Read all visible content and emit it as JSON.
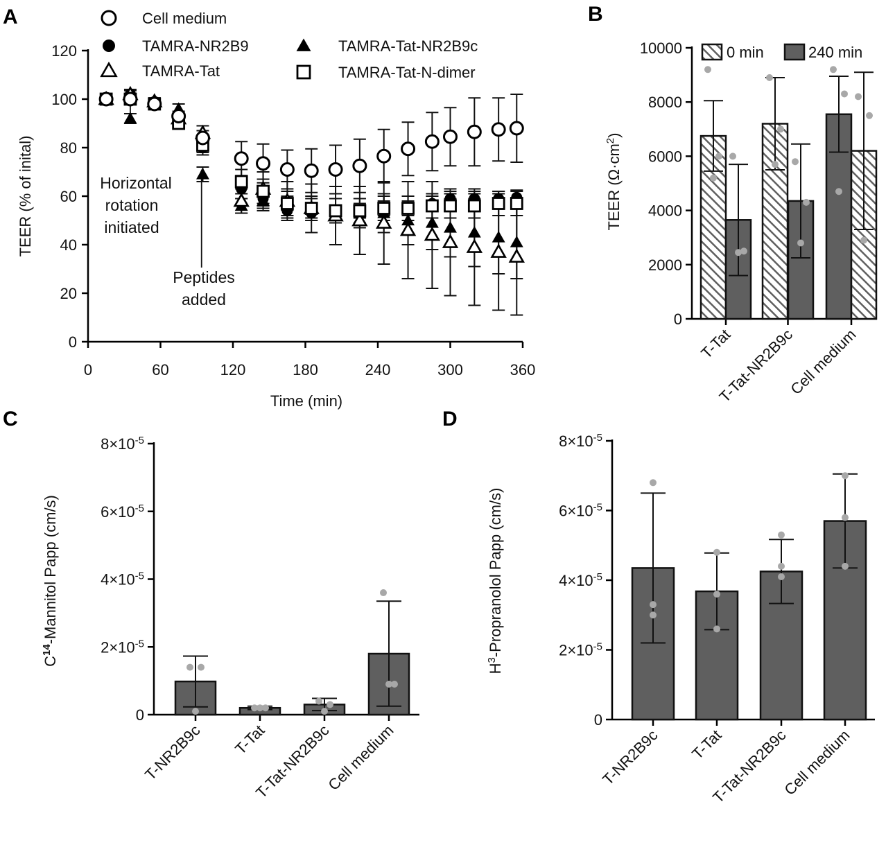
{
  "chart_data": [
    {
      "panel": "A",
      "type": "scatter",
      "xlabel": "Time (min)",
      "ylabel": "TEER (% of inital)",
      "xlim": [
        0,
        360
      ],
      "ylim": [
        0,
        120
      ],
      "xticks": [
        "0",
        "60",
        "120",
        "180",
        "240",
        "300",
        "360"
      ],
      "yticks": [
        "0",
        "20",
        "40",
        "60",
        "80",
        "100",
        "120"
      ],
      "annotations": [
        {
          "text": "Horizontal",
          "x": 35
        },
        {
          "text": "rotation",
          "x": 35
        },
        {
          "text": "initiated",
          "x": 35
        },
        {
          "text": "Peptides",
          "x": 94
        },
        {
          "text": "added",
          "x": 94
        }
      ],
      "x": [
        15,
        35,
        55,
        75,
        95,
        127,
        145,
        165,
        185,
        205,
        225,
        245,
        265,
        285,
        300,
        320,
        340,
        355
      ],
      "series": [
        {
          "name": "Cell medium",
          "marker": "circle-open",
          "values": [
            100,
            100,
            98,
            93,
            84,
            75.5,
            73.5,
            71,
            70.5,
            71,
            72.5,
            76.5,
            79.5,
            82.5,
            84.5,
            86.5,
            87.5,
            88
          ],
          "error": [
            0,
            2,
            1.5,
            2,
            3,
            7,
            8,
            8,
            9,
            10,
            11,
            11,
            11,
            12,
            12,
            14,
            13,
            14
          ]
        },
        {
          "name": "TAMRA-NR2B9",
          "marker": "circle-filled",
          "values": [
            100,
            102,
            99,
            92,
            80,
            63,
            59,
            54,
            53,
            53,
            54,
            55,
            55,
            57,
            59,
            59,
            59,
            59.5
          ],
          "error": [
            0,
            1.5,
            1.5,
            2,
            3,
            4,
            4,
            3,
            3,
            3,
            3,
            3,
            3,
            3,
            3,
            3,
            3,
            3
          ]
        },
        {
          "name": "TAMRA-Tat",
          "marker": "triangle-open",
          "values": [
            100,
            102,
            99,
            92,
            86,
            58,
            63,
            58,
            55,
            52,
            50,
            49,
            46,
            44,
            41,
            39,
            37,
            35
          ],
          "error": [
            0,
            2,
            1.5,
            2,
            3,
            5,
            7,
            8,
            10,
            12,
            14,
            17,
            20,
            22,
            22,
            24,
            24,
            24
          ]
        },
        {
          "name": "TAMRA-Tat-NR2B9c",
          "marker": "triangle-filled",
          "values": [
            100,
            92,
            99,
            96,
            69,
            56,
            58,
            56,
            55,
            54,
            53,
            53,
            50,
            49,
            47,
            45,
            43,
            41
          ],
          "error": [
            0,
            2,
            1.5,
            2,
            3,
            3,
            4,
            4,
            4,
            5,
            6,
            8,
            10,
            11,
            12,
            14,
            15,
            15
          ]
        },
        {
          "name": "TAMRA-Tat-N-dimer",
          "marker": "square-open",
          "values": [
            100,
            100,
            98,
            90,
            81,
            66,
            62,
            57,
            55,
            54,
            54,
            55,
            55,
            56,
            56,
            56,
            57,
            57
          ],
          "error": [
            0,
            2,
            1.5,
            2,
            3,
            5,
            5,
            5,
            5,
            5,
            5,
            5,
            5,
            5,
            5,
            5,
            5,
            5
          ]
        }
      ]
    },
    {
      "panel": "B",
      "type": "bar",
      "ylabel": "TEER (Ω·cm²)",
      "ylim": [
        0,
        10000
      ],
      "yticks": [
        "0",
        "2000",
        "4000",
        "6000",
        "8000",
        "10000"
      ],
      "categories": [
        "T-Tat",
        "T-Tat-NR2B9c",
        "Cell medium"
      ],
      "legend": [
        {
          "label": "0 min",
          "fill": "hatch"
        },
        {
          "label": "240 min",
          "fill": "solid"
        }
      ],
      "groups": [
        {
          "category": "T-Tat",
          "bars": [
            {
              "series": "0 min",
              "fill": "hatch",
              "value": 6750,
              "sd": 1300,
              "points": [
                9200,
                6000,
                5200
              ]
            },
            {
              "series": "240 min",
              "fill": "solid",
              "value": 3650,
              "sd": 2050,
              "points": [
                6000,
                2500,
                2450
              ]
            }
          ]
        },
        {
          "category": "T-Tat-NR2B9c",
          "bars": [
            {
              "series": "0 min",
              "fill": "hatch",
              "value": 7200,
              "sd": 1700,
              "points": [
                8900,
                7000,
                5700
              ]
            },
            {
              "series": "240 min",
              "fill": "solid",
              "value": 4350,
              "sd": 2100,
              "points": [
                5800,
                4300,
                2800
              ]
            }
          ]
        },
        {
          "category": "Cell medium",
          "bars": [
            {
              "series": "240 min",
              "fill": "solid",
              "value": 7550,
              "sd": 1400,
              "points": [
                9200,
                8300,
                4700
              ]
            },
            {
              "series": "0 min",
              "fill": "hatch",
              "value": 6200,
              "sd": 2900,
              "points": [
                8200,
                7500,
                2900
              ]
            }
          ]
        }
      ]
    },
    {
      "panel": "C",
      "type": "bar",
      "ylabel_prefix": "C",
      "ylabel_sup": "14",
      "ylabel_rest": "-Mannitol Papp (cm/s)",
      "ylim": [
        0,
        8e-05
      ],
      "yticks": [
        {
          "base": "0",
          "exp": ""
        },
        {
          "base": "2×10",
          "exp": "-5"
        },
        {
          "base": "4×10",
          "exp": "-5"
        },
        {
          "base": "6×10",
          "exp": "-5"
        },
        {
          "base": "8×10",
          "exp": "-5"
        }
      ],
      "categories": [
        "T-NR2B9c",
        "T-Tat",
        "T-Tat-NR2B9c",
        "Cell medium"
      ],
      "values": [
        9.8e-06,
        2e-06,
        3e-06,
        1.8e-05
      ],
      "sd": [
        7.5e-06,
        5e-07,
        1.8e-06,
        1.55e-05
      ],
      "points": [
        [
          1.4e-05,
          1.4e-05,
          1e-06
        ],
        [
          2e-06,
          2e-06,
          2e-06
        ],
        [
          4e-06,
          3e-06,
          1e-06
        ],
        [
          3.6e-05,
          9e-06,
          9e-06
        ]
      ]
    },
    {
      "panel": "D",
      "type": "bar",
      "ylabel_prefix": "H",
      "ylabel_sup": "3",
      "ylabel_rest": "-Propranolol Papp (cm/s)",
      "ylim": [
        0,
        8e-05
      ],
      "yticks": [
        {
          "base": "0",
          "exp": ""
        },
        {
          "base": "2×10",
          "exp": "-5"
        },
        {
          "base": "4×10",
          "exp": "-5"
        },
        {
          "base": "6×10",
          "exp": "-5"
        },
        {
          "base": "8×10",
          "exp": "-5"
        }
      ],
      "categories": [
        "T-NR2B9c",
        "T-Tat",
        "T-Tat-NR2B9c",
        "Cell medium"
      ],
      "values": [
        4.35e-05,
        3.68e-05,
        4.25e-05,
        5.7e-05
      ],
      "sd": [
        2.15e-05,
        1.1e-05,
        9.2e-06,
        1.35e-05
      ],
      "points": [
        [
          6.8e-05,
          3.3e-05,
          3e-05
        ],
        [
          4.8e-05,
          3.6e-05,
          2.6e-05
        ],
        [
          5.3e-05,
          4.4e-05,
          4.1e-05
        ],
        [
          7e-05,
          5.8e-05,
          4.4e-05
        ]
      ]
    }
  ],
  "panel_labels": [
    "A",
    "B",
    "C",
    "D"
  ]
}
